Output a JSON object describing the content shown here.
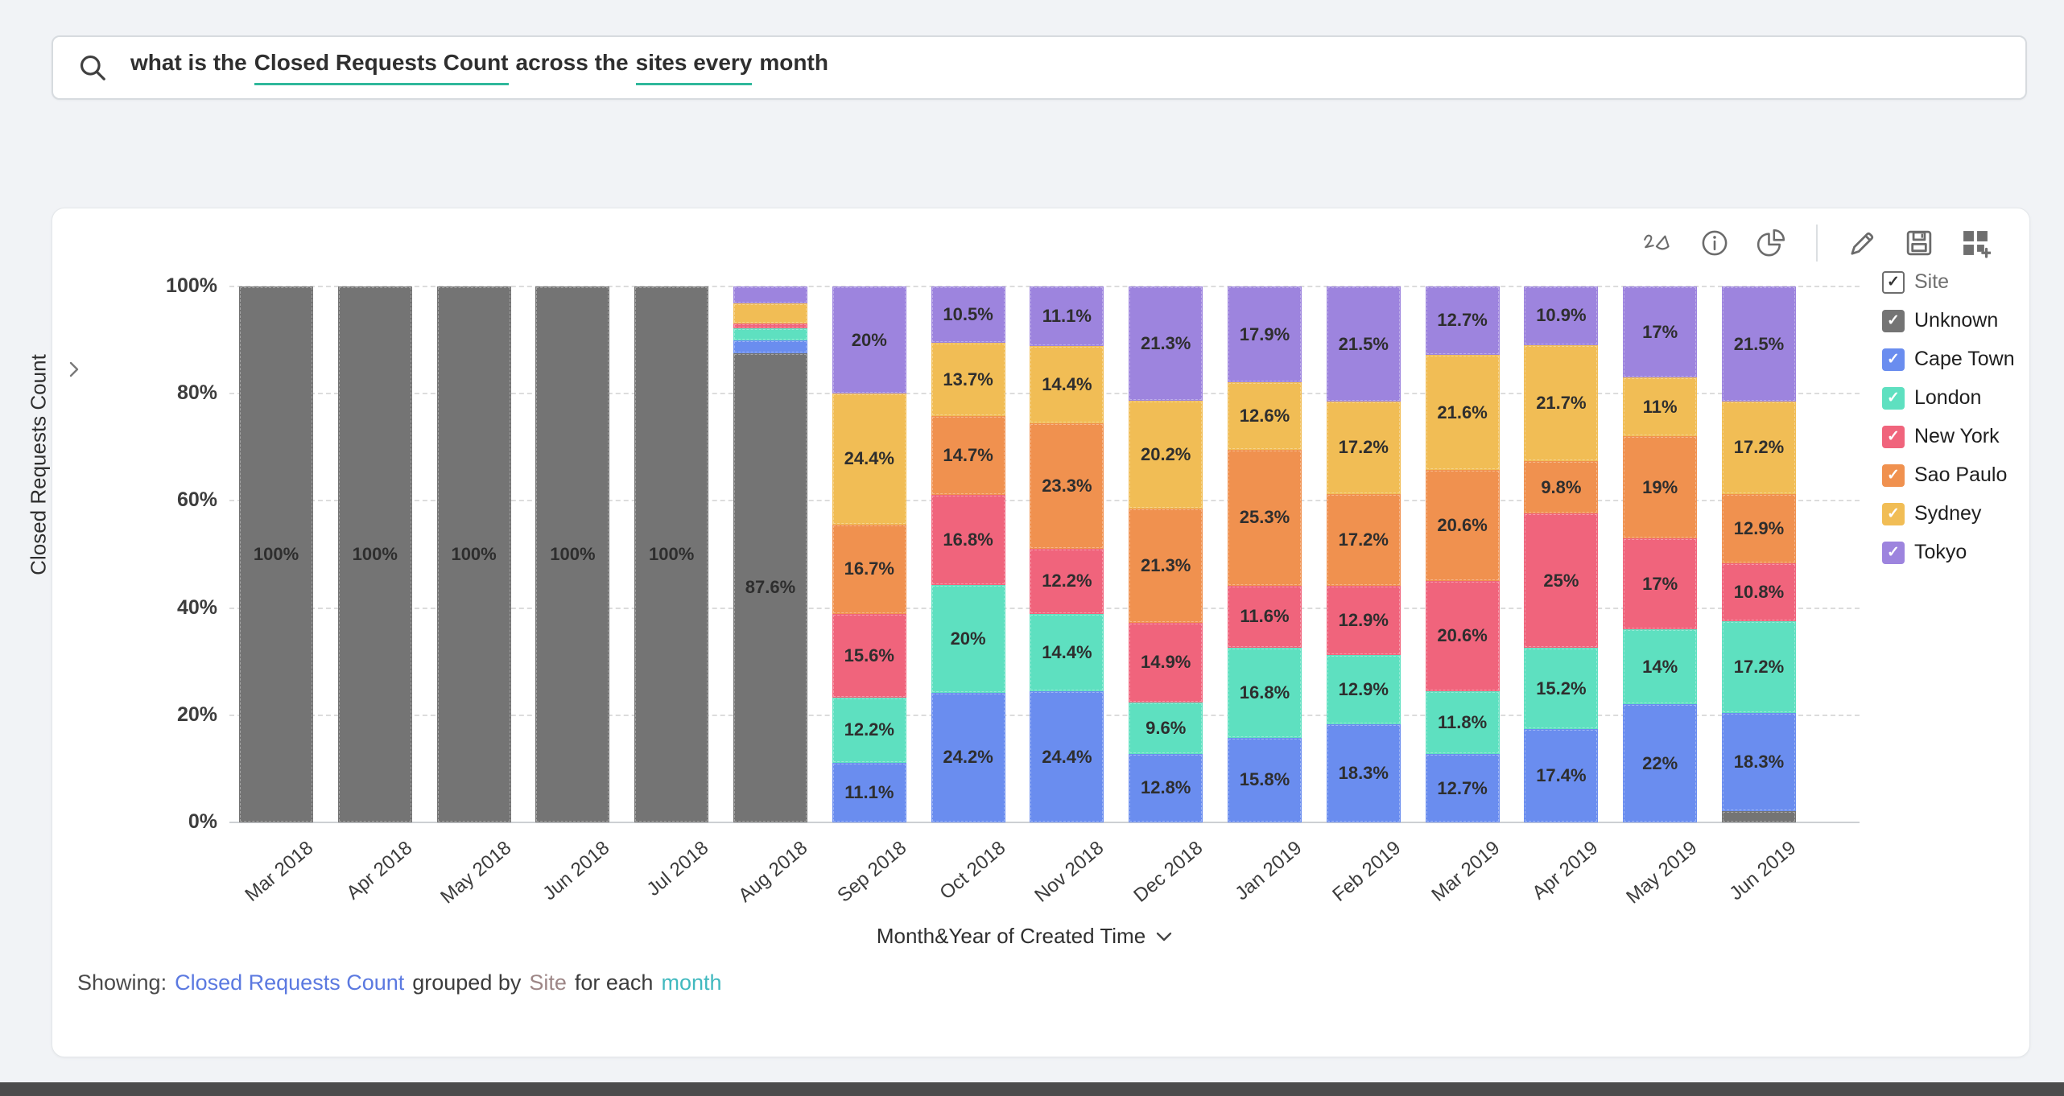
{
  "search": {
    "part1": "what is the",
    "highlight1": "Closed Requests Count",
    "part2": "across the",
    "highlight2": "sites every",
    "part3": "month"
  },
  "toolbar": {
    "icons": [
      "zia-sketch-icon",
      "info-icon",
      "pie-chart-icon",
      "edit-pencil-icon",
      "save-icon",
      "add-to-dashboard-icon"
    ]
  },
  "chart_data": {
    "type": "bar",
    "variant": "100-percent-stacked-column",
    "title": "",
    "xlabel": "Month&Year of Created Time",
    "ylabel": "Closed Requests Count",
    "yticks": [
      "0%",
      "20%",
      "40%",
      "60%",
      "80%",
      "100%"
    ],
    "ylim": [
      0,
      100
    ],
    "grid": "dashed-horizontal",
    "legend_position": "right",
    "legend_title": "Site",
    "categories": [
      "Mar 2018",
      "Apr 2018",
      "May 2018",
      "Jun 2018",
      "Jul 2018",
      "Aug 2018",
      "Sep 2018",
      "Oct 2018",
      "Nov 2018",
      "Dec 2018",
      "Jan 2019",
      "Feb 2019",
      "Mar 2019",
      "Apr 2019",
      "May 2019",
      "Jun 2019"
    ],
    "series": [
      {
        "name": "Unknown",
        "color": "#747474",
        "values": [
          100,
          100,
          100,
          100,
          100,
          87.6,
          0,
          0,
          0,
          0,
          0,
          0,
          0,
          0,
          0,
          2.1
        ],
        "labels": [
          "100%",
          "100%",
          "100%",
          "100%",
          "100%",
          "87.6%",
          "",
          "",
          "",
          "",
          "",
          "",
          "",
          "",
          "",
          ""
        ]
      },
      {
        "name": "Cape Town",
        "color": "#6a8def",
        "values": [
          0,
          0,
          0,
          0,
          0,
          2.3,
          11.1,
          24.2,
          24.4,
          12.8,
          15.8,
          18.3,
          12.7,
          17.4,
          22,
          18.3
        ],
        "labels": [
          "",
          "",
          "",
          "",
          "",
          "",
          "11.1%",
          "24.2%",
          "24.4%",
          "12.8%",
          "15.8%",
          "18.3%",
          "12.7%",
          "17.4%",
          "22%",
          "18.3%"
        ]
      },
      {
        "name": "London",
        "color": "#5ee0c0",
        "values": [
          0,
          0,
          0,
          0,
          0,
          2.3,
          12.2,
          20,
          14.4,
          9.6,
          16.8,
          12.9,
          11.8,
          15.2,
          14,
          17.2
        ],
        "labels": [
          "",
          "",
          "",
          "",
          "",
          "",
          "12.2%",
          "20%",
          "14.4%",
          "9.6%",
          "16.8%",
          "12.9%",
          "11.8%",
          "15.2%",
          "14%",
          "17.2%"
        ]
      },
      {
        "name": "New York",
        "color": "#f0647c",
        "values": [
          0,
          0,
          0,
          0,
          0,
          0.9,
          15.6,
          16.8,
          12.2,
          14.9,
          11.6,
          12.9,
          20.6,
          25,
          17,
          10.8
        ],
        "labels": [
          "",
          "",
          "",
          "",
          "",
          "",
          "15.6%",
          "16.8%",
          "12.2%",
          "14.9%",
          "11.6%",
          "12.9%",
          "20.6%",
          "25%",
          "17%",
          "10.8%"
        ]
      },
      {
        "name": "Sao Paulo",
        "color": "#f0914f",
        "values": [
          0,
          0,
          0,
          0,
          0,
          0,
          16.7,
          14.7,
          23.3,
          21.3,
          25.3,
          17.2,
          20.6,
          9.8,
          19,
          12.9
        ],
        "labels": [
          "",
          "",
          "",
          "",
          "",
          "",
          "16.7%",
          "14.7%",
          "23.3%",
          "21.3%",
          "25.3%",
          "17.2%",
          "20.6%",
          "9.8%",
          "19%",
          "12.9%"
        ]
      },
      {
        "name": "Sydney",
        "color": "#f1bd55",
        "values": [
          0,
          0,
          0,
          0,
          0,
          3.8,
          24.4,
          13.7,
          14.4,
          20.2,
          12.6,
          17.2,
          21.6,
          21.7,
          11,
          17.2
        ],
        "labels": [
          "",
          "",
          "",
          "",
          "",
          "",
          "24.4%",
          "13.7%",
          "14.4%",
          "20.2%",
          "12.6%",
          "17.2%",
          "21.6%",
          "21.7%",
          "11%",
          "17.2%"
        ]
      },
      {
        "name": "Tokyo",
        "color": "#9d84de",
        "values": [
          0,
          0,
          0,
          0,
          0,
          3.1,
          20,
          10.5,
          11.1,
          21.3,
          17.9,
          21.5,
          12.7,
          10.9,
          17,
          21.5
        ],
        "labels": [
          "",
          "",
          "",
          "",
          "",
          "",
          "20%",
          "10.5%",
          "11.1%",
          "21.3%",
          "17.9%",
          "21.5%",
          "12.7%",
          "10.9%",
          "17%",
          "21.5%"
        ]
      }
    ]
  },
  "footer": {
    "prefix": "Showing:",
    "metric": "Closed Requests Count",
    "joiner1": "grouped by",
    "dimension": "Site",
    "joiner2": "for each",
    "period": "month"
  },
  "palette": {
    "query_underline": "#2fb89b",
    "footer_metric": "#5b79e0",
    "footer_dimension": "#9d8686",
    "footer_period": "#41b9bf"
  }
}
